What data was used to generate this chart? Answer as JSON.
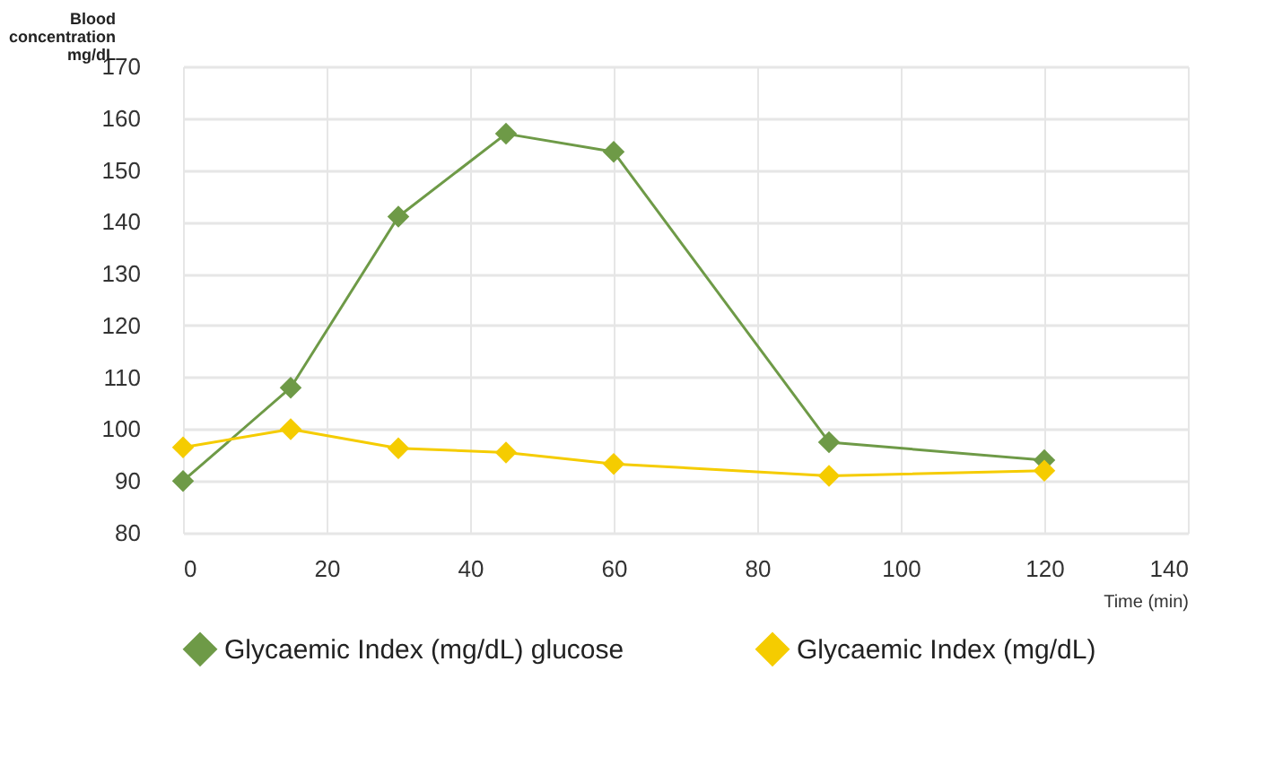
{
  "chart_data": {
    "type": "line",
    "xlabel": "Time (min)",
    "ylabel": "Blood concentration mg/dL",
    "x": [
      0,
      15,
      30,
      45,
      60,
      90,
      120
    ],
    "series": [
      {
        "name": "Glycaemic Index (mg/dL) glucose",
        "color": "#6e9a47",
        "values": [
          90,
          108,
          141,
          157,
          153.5,
          97.5,
          94
        ]
      },
      {
        "name": "Glycaemic Index (mg/dL)",
        "color": "#f5cc00",
        "values": [
          96.5,
          100,
          96.3,
          95.5,
          93.3,
          91,
          92
        ]
      }
    ],
    "xlim": [
      0,
      140
    ],
    "xticks": [
      0,
      20,
      40,
      60,
      80,
      100,
      120,
      140
    ],
    "ylim": [
      80,
      170
    ],
    "yticks": [
      80,
      90,
      100,
      110,
      120,
      130,
      140,
      150,
      160,
      170
    ],
    "grid": true,
    "legend": "bottom",
    "marker": "diamond",
    "line_style": "solid"
  }
}
